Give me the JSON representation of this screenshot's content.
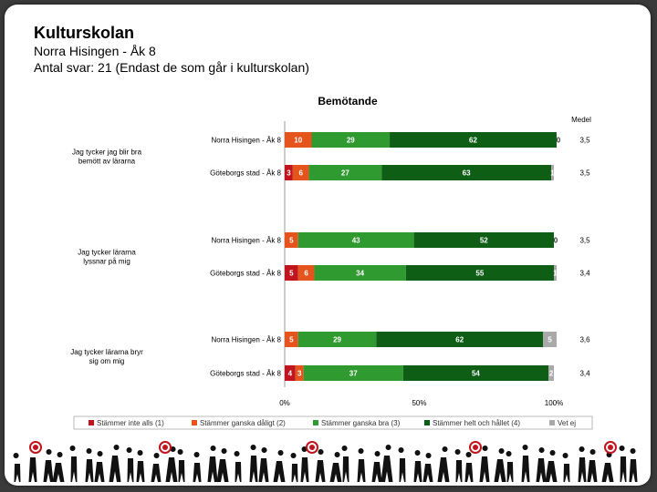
{
  "slide": {
    "title": "Kulturskolan",
    "subtitle1": "Norra Hisingen - Åk 8",
    "subtitle2": "Antal svar: 21 (Endast de som går i kulturskolan)"
  },
  "chart_data": {
    "type": "bar",
    "stacked": true,
    "orientation": "horizontal",
    "title": "Bemötande",
    "mean_header": "Medel",
    "xlim": [
      0,
      100
    ],
    "x_ticks": [
      "0%",
      "50%",
      "100%"
    ],
    "legend_position": "bottom",
    "series": [
      {
        "name": "Stämmer inte alls (1)",
        "color": "#c0141e"
      },
      {
        "name": "Stämmer ganska dåligt (2)",
        "color": "#e4541c"
      },
      {
        "name": "Stämmer ganska bra (3)",
        "color": "#2f9a2f"
      },
      {
        "name": "Stämmer helt och hållet (4)",
        "color": "#0e5e16"
      },
      {
        "name": "Vet ej",
        "color": "#a9a9a9"
      }
    ],
    "questions": [
      {
        "label": "Jag tycker jag blir bra bemött av lärarna",
        "rows": [
          {
            "group": "Norra Hisingen - Åk 8",
            "values": [
              0,
              10,
              29,
              62,
              0
            ],
            "labels": [
              "0",
              "10",
              "29",
              "62",
              "0"
            ],
            "mean": "3,5"
          },
          {
            "group": "Göteborgs stad - Åk 8",
            "values": [
              3,
              6,
              27,
              63,
              1
            ],
            "labels": [
              "3",
              "6",
              "27",
              "63",
              "1"
            ],
            "mean": "3,5"
          }
        ]
      },
      {
        "label": "Jag tycker lärarna lyssnar på mig",
        "rows": [
          {
            "group": "Norra Hisingen - Åk 8",
            "values": [
              0,
              5,
              43,
              52,
              0
            ],
            "labels": [
              "0",
              "5",
              "43",
              "52",
              "0"
            ],
            "mean": "3,5"
          },
          {
            "group": "Göteborgs stad - Åk 8",
            "values": [
              5,
              6,
              34,
              55,
              1
            ],
            "labels": [
              "5",
              "6",
              "34",
              "55",
              "1"
            ],
            "mean": "3,4"
          }
        ]
      },
      {
        "label": "Jag tycker lärarna bryr sig om mig",
        "rows": [
          {
            "group": "Norra Hisingen - Åk 8",
            "values": [
              0,
              5,
              29,
              62,
              5
            ],
            "labels": [
              "0",
              "5",
              "29",
              "62",
              "5"
            ],
            "mean": "3,6"
          },
          {
            "group": "Göteborgs stad - Åk 8",
            "values": [
              4,
              3,
              37,
              54,
              2
            ],
            "labels": [
              "4",
              "3",
              "37",
              "54",
              "2"
            ],
            "mean": "3,4"
          }
        ]
      }
    ]
  }
}
